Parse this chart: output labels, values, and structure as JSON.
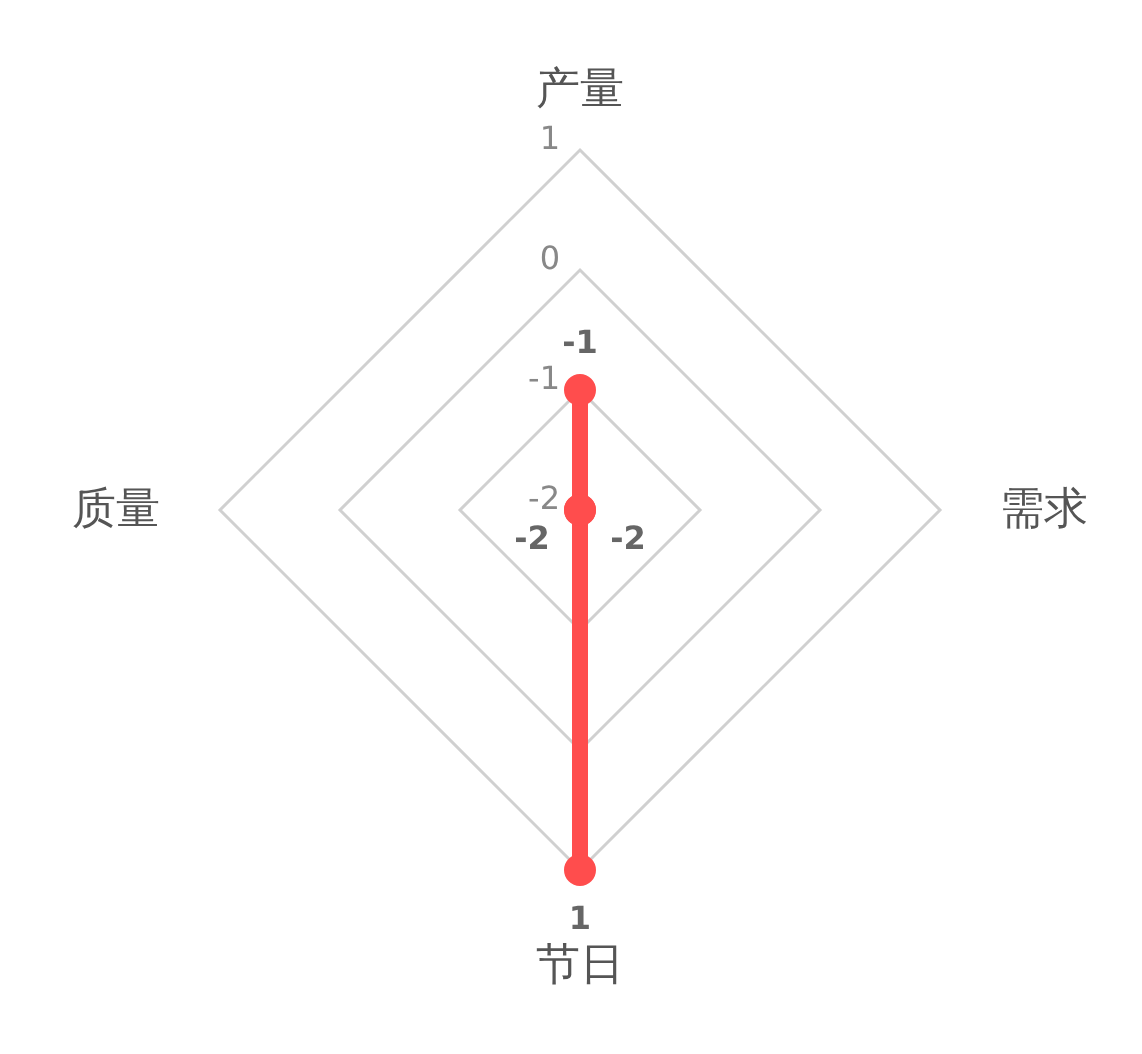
{
  "chart_data": {
    "type": "radar",
    "categories": [
      "产量",
      "需求",
      "节日",
      "质量"
    ],
    "series": [
      {
        "color": "#ff4d4d",
        "values": [
          -1,
          -2,
          1,
          -2
        ]
      }
    ],
    "ylim": [
      -2,
      1
    ],
    "yticks": [
      -2,
      -1,
      0,
      1
    ],
    "data_labels": true,
    "marker": "circle",
    "grid": true,
    "legend": false
  }
}
